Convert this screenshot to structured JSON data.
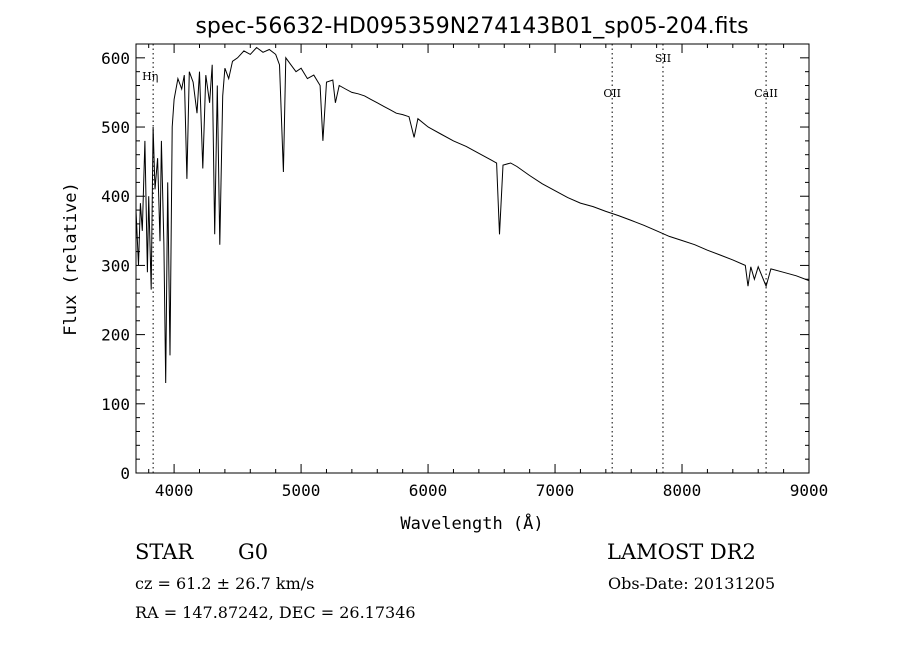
{
  "chart_data": {
    "type": "line",
    "title": "spec-56632-HD095359N274143B01_sp05-204.fits",
    "xlabel": "Wavelength (Å)",
    "ylabel": "Flux (relative)",
    "xlim": [
      3700,
      9000
    ],
    "ylim": [
      0,
      620
    ],
    "xticks": [
      4000,
      5000,
      6000,
      7000,
      8000,
      9000
    ],
    "yticks": [
      0,
      100,
      200,
      300,
      400,
      500,
      600
    ],
    "grid": false,
    "series": [
      {
        "x": [
          3700,
          3720,
          3735,
          3750,
          3770,
          3790,
          3800,
          3820,
          3835,
          3850,
          3870,
          3889,
          3900,
          3920,
          3934,
          3950,
          3968,
          3985,
          4000,
          4030,
          4060,
          4080,
          4101,
          4120,
          4150,
          4180,
          4200,
          4226,
          4250,
          4280,
          4300,
          4320,
          4340,
          4360,
          4383,
          4400,
          4430,
          4460,
          4500,
          4550,
          4600,
          4650,
          4700,
          4750,
          4800,
          4830,
          4861,
          4880,
          4920,
          4960,
          5000,
          5050,
          5100,
          5150,
          5172,
          5200,
          5250,
          5270,
          5300,
          5350,
          5400,
          5450,
          5500,
          5550,
          5600,
          5650,
          5700,
          5750,
          5800,
          5850,
          5890,
          5920,
          6000,
          6100,
          6200,
          6300,
          6400,
          6500,
          6540,
          6563,
          6590,
          6650,
          6700,
          6800,
          6900,
          7000,
          7100,
          7200,
          7300,
          7400,
          7500,
          7600,
          7700,
          7800,
          7900,
          8000,
          8100,
          8200,
          8300,
          8400,
          8498,
          8520,
          8542,
          8570,
          8600,
          8662,
          8700,
          8800,
          8900,
          9000
        ],
        "y": [
          380,
          300,
          390,
          350,
          480,
          290,
          400,
          265,
          500,
          410,
          455,
          335,
          480,
          330,
          130,
          420,
          170,
          500,
          540,
          570,
          555,
          575,
          425,
          580,
          565,
          520,
          580,
          440,
          575,
          535,
          590,
          345,
          560,
          330,
          545,
          585,
          570,
          595,
          600,
          610,
          605,
          615,
          608,
          612,
          605,
          590,
          435,
          600,
          590,
          580,
          585,
          570,
          575,
          560,
          480,
          565,
          568,
          535,
          560,
          555,
          550,
          548,
          545,
          540,
          535,
          530,
          525,
          520,
          518,
          515,
          485,
          512,
          500,
          490,
          480,
          472,
          462,
          452,
          448,
          345,
          445,
          448,
          443,
          430,
          418,
          408,
          398,
          390,
          385,
          378,
          372,
          365,
          358,
          350,
          342,
          336,
          330,
          322,
          315,
          308,
          300,
          270,
          298,
          280,
          298,
          270,
          295,
          290,
          285,
          278
        ]
      }
    ],
    "annotations": [
      {
        "label": "Hη",
        "x": 3835
      },
      {
        "label": "OII",
        "x": 7450
      },
      {
        "label": "SII",
        "x": 7850
      },
      {
        "label": "CaII",
        "x": 8662
      }
    ]
  },
  "info": {
    "object_class": "STAR",
    "subclass": "G0",
    "survey": "LAMOST DR2",
    "cz_line": "cz = 61.2 ± 26.7 km/s",
    "obs_date_line": "Obs-Date: 20131205",
    "radec_line": "RA = 147.87242, DEC =  26.17346"
  }
}
